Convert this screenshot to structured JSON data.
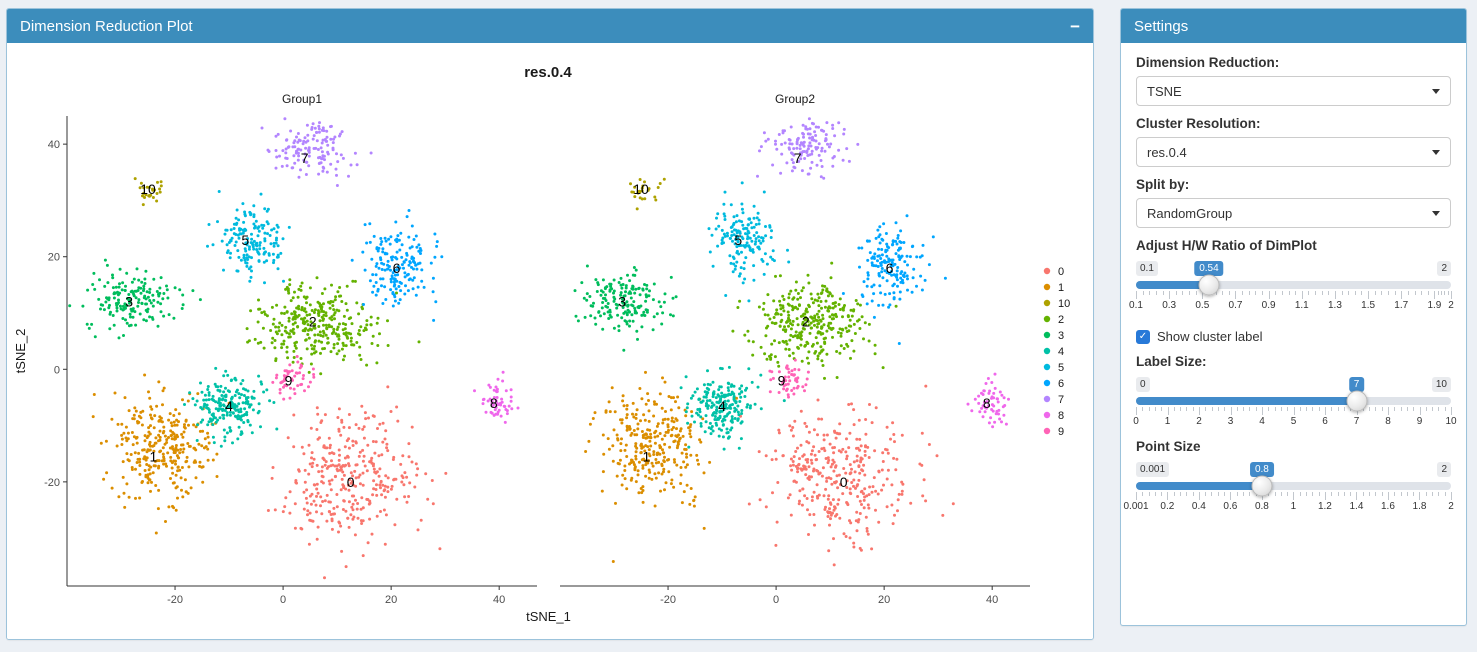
{
  "colors": {
    "page_background": "#ecf0f5",
    "header_blue": "#3c8dbc",
    "slider_accent": "#428bca",
    "checkbox_blue": "#2779d8"
  },
  "main_panel": {
    "title": "Dimension Reduction Plot",
    "collapse_icon": "−"
  },
  "settings_panel": {
    "title": "Settings",
    "controls": {
      "dimension_reduction": {
        "label": "Dimension Reduction:",
        "value": "TSNE"
      },
      "cluster_resolution": {
        "label": "Cluster Resolution:",
        "value": "res.0.4"
      },
      "split_by": {
        "label": "Split by:",
        "value": "RandomGroup"
      },
      "hw_ratio": {
        "label": "Adjust H/W Ratio of DimPlot",
        "min": 0.1,
        "max": 2,
        "value": 0.54,
        "min_label": "0.1",
        "max_label": "2",
        "value_label": "0.54",
        "tick_values": [
          0.1,
          0.3,
          0.5,
          0.7,
          0.9,
          1.1,
          1.3,
          1.5,
          1.7,
          1.9,
          2
        ],
        "tick_labels": [
          "0.1",
          "0.3",
          "0.5",
          "0.7",
          "0.9",
          "1.1",
          "1.3",
          "1.5",
          "1.7",
          "1.9",
          "2"
        ]
      },
      "show_cluster_label": {
        "label": "Show cluster label",
        "checked": true
      },
      "label_size": {
        "label": "Label Size:",
        "min": 0,
        "max": 10,
        "value": 7,
        "min_label": "0",
        "max_label": "10",
        "value_label": "7",
        "tick_values": [
          0,
          1,
          2,
          3,
          4,
          5,
          6,
          7,
          8,
          9,
          10
        ],
        "tick_labels": [
          "0",
          "1",
          "2",
          "3",
          "4",
          "5",
          "6",
          "7",
          "8",
          "9",
          "10"
        ]
      },
      "point_size": {
        "label": "Point Size",
        "min": 0.001,
        "max": 2,
        "value": 0.8,
        "min_label": "0.001",
        "max_label": "2",
        "value_label": "0.8",
        "tick_values": [
          0.001,
          0.2,
          0.4,
          0.6,
          0.8,
          1,
          1.2,
          1.4,
          1.6,
          1.8,
          2
        ],
        "tick_labels": [
          "0.001",
          "0.2",
          "0.4",
          "0.6",
          "0.8",
          "1",
          "1.2",
          "1.4",
          "1.6",
          "1.8",
          "2"
        ]
      }
    }
  },
  "chart_data": {
    "type": "scatter",
    "title": "res.0.4",
    "facets": [
      "Group1",
      "Group2"
    ],
    "xlabel": "tSNE_1",
    "ylabel": "tSNE_2",
    "xlim": [
      -40,
      47
    ],
    "ylim": [
      -38.5,
      45
    ],
    "xticks": [
      -20,
      0,
      20,
      40
    ],
    "yticks": [
      -20,
      0,
      20,
      40
    ],
    "grid": false,
    "legend_position": "right",
    "legend_order": [
      "0",
      "1",
      "10",
      "2",
      "3",
      "4",
      "5",
      "6",
      "7",
      "8",
      "9"
    ],
    "point_radius": 1.5,
    "clusters": [
      {
        "id": "0",
        "color": "#F8766D",
        "center": [
          12,
          -19
        ],
        "sd": [
          6.5,
          5.5
        ],
        "n": 340,
        "label_pos": [
          12.5,
          -20
        ]
      },
      {
        "id": "1",
        "color": "#DB8E00",
        "center": [
          -23,
          -14
        ],
        "sd": [
          4.8,
          4.8
        ],
        "n": 300,
        "label_pos": [
          -24,
          -15.5
        ]
      },
      {
        "id": "10",
        "color": "#AEA200",
        "center": [
          -24.5,
          31.5
        ],
        "sd": [
          1.6,
          1.1
        ],
        "n": 26,
        "label_pos": [
          -25,
          32
        ]
      },
      {
        "id": "2",
        "color": "#64B200",
        "center": [
          6.5,
          8
        ],
        "sd": [
          5.5,
          3.6
        ],
        "n": 310,
        "label_pos": [
          5.5,
          8.5
        ]
      },
      {
        "id": "3",
        "color": "#00BD5C",
        "center": [
          -28,
          12
        ],
        "sd": [
          4.3,
          2.6
        ],
        "n": 170,
        "label_pos": [
          -28.5,
          12
        ]
      },
      {
        "id": "4",
        "color": "#00C1A7",
        "center": [
          -10,
          -6.5
        ],
        "sd": [
          3.0,
          2.8
        ],
        "n": 210,
        "label_pos": [
          -10,
          -6.5
        ]
      },
      {
        "id": "5",
        "color": "#00BADE",
        "center": [
          -6,
          23
        ],
        "sd": [
          2.8,
          3.2
        ],
        "n": 160,
        "label_pos": [
          -7,
          23
        ]
      },
      {
        "id": "6",
        "color": "#00A6FF",
        "center": [
          21,
          18.5
        ],
        "sd": [
          3.2,
          3.5
        ],
        "n": 170,
        "label_pos": [
          21,
          18
        ]
      },
      {
        "id": "7",
        "color": "#B385FF",
        "center": [
          5.5,
          39.5
        ],
        "sd": [
          3.8,
          2.3
        ],
        "n": 135,
        "label_pos": [
          4,
          37.5
        ]
      },
      {
        "id": "8",
        "color": "#EF67EB",
        "center": [
          39.5,
          -6
        ],
        "sd": [
          1.6,
          1.9
        ],
        "n": 55,
        "label_pos": [
          39,
          -6
        ]
      },
      {
        "id": "9",
        "color": "#FF63B6",
        "center": [
          2,
          -2
        ],
        "sd": [
          1.8,
          1.5
        ],
        "n": 50,
        "label_pos": [
          1,
          -2
        ]
      }
    ]
  }
}
